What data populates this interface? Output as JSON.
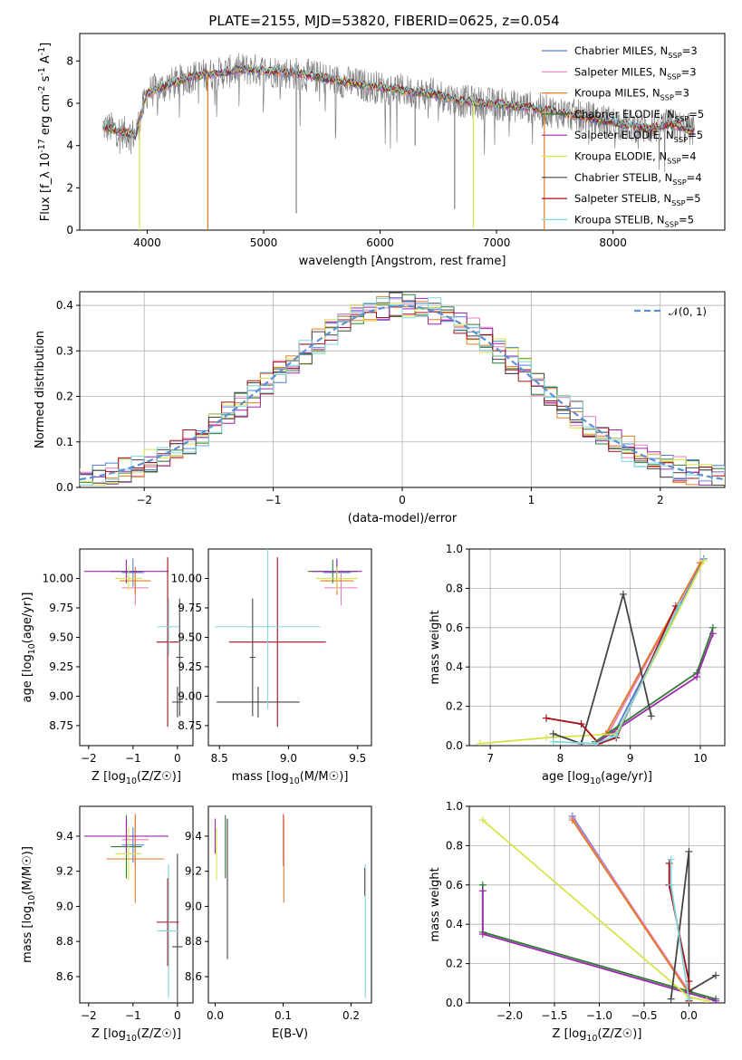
{
  "colors": {
    "Chabrier MILES": "#4f7fdd",
    "Salpeter MILES": "#e47fbf",
    "Kroupa MILES": "#e07b23",
    "Chabrier ELODIE": "#2e7d32",
    "Salpeter ELODIE": "#9c27b0",
    "Kroupa ELODIE": "#d8e34a",
    "Chabrier STELIB": "#454545",
    "Salpeter STELIB": "#a50f15",
    "Kroupa STELIB": "#7fd6dc",
    "data": "#808080",
    "normal": "#5b8fd6"
  },
  "chart_data": [
    {
      "id": "spectrum",
      "type": "line",
      "title": "PLATE=2155, MJD=53820, FIBERID=0625, z=0.054",
      "xlabel": "wavelength [Angstrom, rest frame]",
      "ylabel": "Flux [f_λ 10^-17 erg cm^-2 s^-1 A^-1]",
      "xlim": [
        3420,
        8960
      ],
      "ylim": [
        0,
        9.3
      ],
      "xticks": [
        "4000",
        "5000",
        "6000",
        "7000",
        "8000"
      ],
      "yticks": [
        "0",
        "2",
        "4",
        "6",
        "8"
      ],
      "legend_position": "top-right",
      "legend": [
        {
          "model": "Chabrier MILES",
          "label": "Chabrier MILES, N_SSP=3"
        },
        {
          "model": "Salpeter MILES",
          "label": "Salpeter MILES, N_SSP=3"
        },
        {
          "model": "Kroupa MILES",
          "label": "Kroupa MILES, N_SSP=3"
        },
        {
          "model": "Chabrier ELODIE",
          "label": "Chabrier ELODIE, N_SSP=5"
        },
        {
          "model": "Salpeter ELODIE",
          "label": "Salpeter ELODIE, N_SSP=5"
        },
        {
          "model": "Kroupa ELODIE",
          "label": "Kroupa ELODIE, N_SSP=4"
        },
        {
          "model": "Chabrier STELIB",
          "label": "Chabrier STELIB, N_SSP=4"
        },
        {
          "model": "Salpeter STELIB",
          "label": "Salpeter STELIB, N_SSP=5"
        },
        {
          "model": "Kroupa STELIB",
          "label": "Kroupa STELIB, N_SSP=5"
        }
      ],
      "continuum": {
        "x": [
          3620,
          3700,
          3800,
          3900,
          4000,
          4200,
          4400,
          4600,
          4800,
          4900,
          5100,
          5300,
          5500,
          5700,
          5900,
          6100,
          6300,
          6500,
          6700,
          6900,
          7100,
          7300,
          7500,
          7700,
          7900,
          8100,
          8300,
          8500,
          8700
        ],
        "y": [
          4.9,
          4.8,
          4.6,
          4.5,
          6.5,
          6.9,
          7.3,
          7.4,
          7.6,
          7.6,
          7.5,
          7.4,
          7.2,
          7.0,
          6.8,
          6.7,
          6.5,
          6.4,
          6.1,
          6.0,
          5.9,
          5.8,
          5.6,
          5.4,
          5.2,
          5.0,
          4.8,
          5.0,
          4.7
        ]
      },
      "absorption_dips": [
        {
          "wavelength": 3933,
          "depth_to": 0.0,
          "series": "Kroupa ELODIE"
        },
        {
          "wavelength": 4520,
          "depth_to": 0.0,
          "series": "Kroupa MILES"
        },
        {
          "wavelength": 6800,
          "depth_to": 0.1,
          "series": "Kroupa ELODIE"
        },
        {
          "wavelength": 7410,
          "depth_to": 0.0,
          "series": "Kroupa MILES"
        },
        {
          "wavelength": 5280,
          "depth_to": 0.8,
          "series": "data"
        },
        {
          "wavelength": 6640,
          "depth_to": 1.0,
          "series": "data"
        },
        {
          "wavelength": 6300,
          "depth_to": 4.0,
          "series": "data"
        }
      ]
    },
    {
      "id": "residuals",
      "type": "step",
      "xlabel": "(data-model)/error",
      "ylabel": "Normed distribution",
      "xlim": [
        -2.5,
        2.5
      ],
      "ylim": [
        0,
        0.43
      ],
      "xticks": [
        "−2",
        "−1",
        "0",
        "1",
        "2"
      ],
      "yticks": [
        "0.0",
        "0.1",
        "0.2",
        "0.3",
        "0.4"
      ],
      "legend_position": "top-right",
      "legend_label": "𝒩(0, 1)",
      "bin_width": 0.1,
      "normal": {
        "mean": 0,
        "sigma": 1
      }
    },
    {
      "id": "age-vs-Z",
      "type": "errorbar",
      "xlabel": "Z [log10(Z/Z☉)]",
      "ylabel": "age  [log10(age/yr)]",
      "xlim": [
        -2.2,
        0.35
      ],
      "ylim": [
        8.58,
        10.25
      ],
      "xticks": [
        "−2",
        "−1",
        "0"
      ],
      "yticks": [
        "8.75",
        "9.00",
        "9.25",
        "9.50",
        "9.75",
        "10.00"
      ],
      "points": [
        {
          "series": "Chabrier MILES",
          "x": -1.0,
          "xerr": 0.25,
          "y": 10.05,
          "yerr": 0.12
        },
        {
          "series": "Salpeter MILES",
          "x": -0.95,
          "xerr": 0.3,
          "y": 9.92,
          "yerr": 0.15
        },
        {
          "series": "Kroupa MILES",
          "x": -0.95,
          "xerr": 0.35,
          "y": 9.98,
          "yerr": 0.12
        },
        {
          "series": "Chabrier ELODIE",
          "x": -1.15,
          "xerr": 0.35,
          "y": 10.06,
          "yerr": 0.1
        },
        {
          "series": "Salpeter ELODIE",
          "x": -1.15,
          "xerr": 0.95,
          "y": 10.06,
          "yerr": 0.1
        },
        {
          "series": "Kroupa ELODIE",
          "x": -1.1,
          "xerr": 0.3,
          "y": 10.0,
          "yerr": 0.1
        },
        {
          "series": "Chabrier STELIB",
          "x": 0.0,
          "xerr": 0.12,
          "y": 8.95,
          "yerr": 0.13
        },
        {
          "series": "Salpeter STELIB",
          "x": -0.22,
          "xerr": 0.25,
          "y": 9.46,
          "yerr": 0.72
        },
        {
          "series": "Kroupa STELIB",
          "x": -0.2,
          "xerr": 0.25,
          "y": 9.59,
          "yerr": 0.25
        },
        {
          "series": "Chabrier STELIB",
          "x": 0.05,
          "xerr": 0.08,
          "y": 9.33,
          "yerr": 0.5
        }
      ]
    },
    {
      "id": "age-vs-mass",
      "type": "errorbar",
      "xlabel": "mass [log10(M/M☉)]",
      "ylabel": "",
      "xlim": [
        8.42,
        9.6
      ],
      "ylim": [
        8.58,
        10.25
      ],
      "xticks": [
        "8.5",
        "9.0",
        "9.5"
      ],
      "yticks": [
        "8.75",
        "9.00",
        "9.25",
        "9.50",
        "9.75",
        "10.00"
      ],
      "points": [
        {
          "series": "Chabrier MILES",
          "x": 9.35,
          "xerr": 0.1,
          "y": 10.05,
          "yerr": 0.12
        },
        {
          "series": "Salpeter MILES",
          "x": 9.38,
          "xerr": 0.12,
          "y": 9.92,
          "yerr": 0.15
        },
        {
          "series": "Kroupa MILES",
          "x": 9.35,
          "xerr": 0.12,
          "y": 9.98,
          "yerr": 0.12
        },
        {
          "series": "Chabrier ELODIE",
          "x": 9.32,
          "xerr": 0.18,
          "y": 10.06,
          "yerr": 0.1
        },
        {
          "series": "Salpeter ELODIE",
          "x": 9.35,
          "xerr": 0.18,
          "y": 10.06,
          "yerr": 0.1
        },
        {
          "series": "Kroupa ELODIE",
          "x": 9.35,
          "xerr": 0.15,
          "y": 10.0,
          "yerr": 0.1
        },
        {
          "series": "Chabrier STELIB",
          "x": 8.78,
          "xerr": 0.3,
          "y": 8.95,
          "yerr": 0.13
        },
        {
          "series": "Salpeter STELIB",
          "x": 8.92,
          "xerr": 0.35,
          "y": 9.46,
          "yerr": 0.72
        },
        {
          "series": "Kroupa STELIB",
          "x": 8.85,
          "xerr": 0.38,
          "y": 9.59,
          "yerr": 0.7
        },
        {
          "series": "Chabrier STELIB",
          "x": 8.74,
          "xerr": 0.02,
          "y": 9.33,
          "yerr": 0.5
        }
      ]
    },
    {
      "id": "mass-weight-vs-age",
      "type": "line",
      "xlabel": "age  [log10(age/yr)]",
      "ylabel": "mass weight",
      "xlim": [
        6.7,
        10.35
      ],
      "ylim": [
        0,
        1.0
      ],
      "xticks": [
        "7",
        "8",
        "9",
        "10"
      ],
      "yticks": [
        "0.0",
        "0.2",
        "0.4",
        "0.6",
        "0.8",
        "1.0"
      ],
      "series": [
        {
          "name": "Chabrier MILES",
          "x": [
            8.75,
            10.05
          ],
          "y": [
            0.05,
            0.95
          ]
        },
        {
          "name": "Salpeter MILES",
          "x": [
            8.7,
            10.0
          ],
          "y": [
            0.07,
            0.93
          ]
        },
        {
          "name": "Kroupa MILES",
          "x": [
            8.65,
            10.0
          ],
          "y": [
            0.06,
            0.93
          ]
        },
        {
          "name": "Chabrier ELODIE",
          "x": [
            8.5,
            9.95,
            10.18
          ],
          "y": [
            0.02,
            0.37,
            0.6
          ]
        },
        {
          "name": "Salpeter ELODIE",
          "x": [
            8.5,
            9.95,
            10.18
          ],
          "y": [
            0.01,
            0.35,
            0.57
          ]
        },
        {
          "name": "Kroupa ELODIE",
          "x": [
            6.85,
            7.8,
            8.8,
            10.05
          ],
          "y": [
            0.01,
            0.04,
            0.06,
            0.94
          ]
        },
        {
          "name": "Chabrier STELIB",
          "x": [
            7.9,
            8.3,
            8.9,
            9.3
          ],
          "y": [
            0.06,
            0.01,
            0.77,
            0.15
          ]
        },
        {
          "name": "Salpeter STELIB",
          "x": [
            7.8,
            8.3,
            8.55,
            8.8,
            9.65
          ],
          "y": [
            0.14,
            0.11,
            0.01,
            0.04,
            0.71
          ]
        },
        {
          "name": "Kroupa STELIB",
          "x": [
            7.9,
            8.5,
            8.8,
            9.7
          ],
          "y": [
            0.02,
            0.01,
            0.05,
            0.72
          ]
        }
      ]
    },
    {
      "id": "mass-vs-Z",
      "type": "errorbar",
      "xlabel": "Z [log10(Z/Z☉)]",
      "ylabel": "mass [log10(M/M☉)]",
      "xlim": [
        -2.2,
        0.35
      ],
      "ylim": [
        8.45,
        9.57
      ],
      "xticks": [
        "−2",
        "−1",
        "0"
      ],
      "yticks": [
        "8.6",
        "8.8",
        "9.0",
        "9.2",
        "9.4"
      ],
      "points": [
        {
          "series": "Chabrier MILES",
          "x": -1.0,
          "xerr": 0.25,
          "y": 9.35,
          "yerr": 0.1
        },
        {
          "series": "Salpeter MILES",
          "x": -0.95,
          "xerr": 0.3,
          "y": 9.38,
          "yerr": 0.15
        },
        {
          "series": "Kroupa MILES",
          "x": -0.95,
          "xerr": 0.65,
          "y": 9.27,
          "yerr": 0.25
        },
        {
          "series": "Chabrier ELODIE",
          "x": -1.15,
          "xerr": 0.35,
          "y": 9.34,
          "yerr": 0.18
        },
        {
          "series": "Salpeter ELODIE",
          "x": -1.15,
          "xerr": 0.95,
          "y": 9.4,
          "yerr": 0.1
        },
        {
          "series": "Kroupa ELODIE",
          "x": -1.1,
          "xerr": 0.3,
          "y": 9.3,
          "yerr": 0.15
        },
        {
          "series": "Chabrier STELIB",
          "x": 0.0,
          "xerr": 0.12,
          "y": 8.77,
          "yerr": 0.53
        },
        {
          "series": "Salpeter STELIB",
          "x": -0.22,
          "xerr": 0.25,
          "y": 8.91,
          "yerr": 0.25
        },
        {
          "series": "Kroupa STELIB",
          "x": -0.2,
          "xerr": 0.25,
          "y": 8.86,
          "yerr": 0.38
        }
      ]
    },
    {
      "id": "mass-vs-ebv",
      "type": "errorbar",
      "xlabel": "E(B-V)",
      "ylabel": "",
      "xlim": [
        -0.01,
        0.23
      ],
      "ylim": [
        8.45,
        9.57
      ],
      "xticks": [
        "0.0",
        "0.1",
        "0.2"
      ],
      "yticks": [
        "8.6",
        "8.8",
        "9.0",
        "9.2",
        "9.4"
      ],
      "points": [
        {
          "series": "Salpeter ELODIE",
          "x": 0.0,
          "xerr": 0,
          "y": 9.4,
          "yerr": 0.1
        },
        {
          "series": "Kroupa ELODIE",
          "x": 0.002,
          "xerr": 0,
          "y": 9.3,
          "yerr": 0.15
        },
        {
          "series": "Chabrier ELODIE",
          "x": 0.015,
          "xerr": 0,
          "y": 9.34,
          "yerr": 0.18
        },
        {
          "series": "Chabrier STELIB",
          "x": 0.018,
          "xerr": 0,
          "y": 9.1,
          "yerr": 0.4
        },
        {
          "series": "Salpeter MILES",
          "x": 0.1,
          "xerr": 0,
          "y": 9.38,
          "yerr": 0.15
        },
        {
          "series": "Kroupa MILES",
          "x": 0.101,
          "xerr": 0,
          "y": 9.27,
          "yerr": 0.25
        },
        {
          "series": "Salpeter STELIB",
          "x": 0.22,
          "xerr": 0,
          "y": 9.14,
          "yerr": 0.08
        },
        {
          "series": "Kroupa STELIB",
          "x": 0.221,
          "xerr": 0,
          "y": 8.86,
          "yerr": 0.38
        }
      ]
    },
    {
      "id": "mass-weight-vs-Z",
      "type": "line",
      "xlabel": "Z [log10(Z/Z☉)]",
      "ylabel": "mass weight",
      "xlim": [
        -2.45,
        0.4
      ],
      "ylim": [
        0,
        1.0
      ],
      "xticks": [
        "−2.0",
        "−1.5",
        "−1.0",
        "−0.5",
        "0.0"
      ],
      "yticks": [
        "0.0",
        "0.2",
        "0.4",
        "0.6",
        "0.8",
        "1.0"
      ],
      "series": [
        {
          "name": "Chabrier MILES",
          "x": [
            -1.3,
            0.0
          ],
          "y": [
            0.95,
            0.05
          ]
        },
        {
          "name": "Salpeter MILES",
          "x": [
            -1.3,
            0.0
          ],
          "y": [
            0.94,
            0.06
          ]
        },
        {
          "name": "Kroupa MILES",
          "x": [
            -1.3,
            0.0
          ],
          "y": [
            0.93,
            0.05
          ]
        },
        {
          "name": "Chabrier ELODIE",
          "x": [
            -2.3,
            -2.3,
            0.3
          ],
          "y": [
            0.6,
            0.36,
            0.02
          ]
        },
        {
          "name": "Salpeter ELODIE",
          "x": [
            -2.3,
            -2.3,
            0.3
          ],
          "y": [
            0.57,
            0.35,
            0.01
          ]
        },
        {
          "name": "Kroupa ELODIE",
          "x": [
            -2.3,
            0.0,
            0.2
          ],
          "y": [
            0.93,
            0.03,
            0.01
          ]
        },
        {
          "name": "Chabrier STELIB",
          "x": [
            -0.2,
            0.0,
            0.0,
            0.3
          ],
          "y": [
            0.02,
            0.77,
            0.06,
            0.14
          ]
        },
        {
          "name": "Salpeter STELIB",
          "x": [
            -0.22,
            -0.22,
            0.0,
            0.0
          ],
          "y": [
            0.71,
            0.6,
            0.11,
            0.01
          ]
        },
        {
          "name": "Kroupa STELIB",
          "x": [
            -0.2,
            -0.2,
            0.0
          ],
          "y": [
            0.73,
            0.6,
            0.02
          ]
        }
      ]
    }
  ]
}
